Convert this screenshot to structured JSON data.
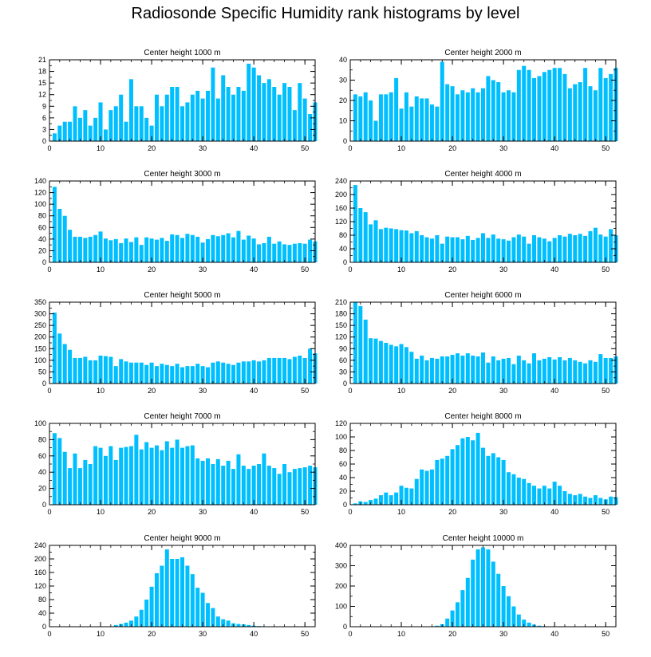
{
  "title": "Radiosonde Specific Humidity rank histograms by level",
  "colors": {
    "bar": "#00BFFF",
    "axis": "#000000"
  },
  "chart_data": [
    {
      "type": "bar",
      "title": "Center height 1000 m",
      "xlim": [
        0,
        52
      ],
      "xticks": [
        0,
        10,
        20,
        30,
        40,
        50
      ],
      "ylim": [
        0,
        21
      ],
      "yticks": [
        0,
        3,
        6,
        9,
        12,
        15,
        18,
        21
      ],
      "values": [
        2,
        4,
        5,
        5,
        9,
        6,
        8,
        4,
        6,
        10,
        3,
        8,
        9,
        12,
        5,
        16,
        9,
        9,
        6,
        4,
        12,
        9,
        12,
        14,
        14,
        9,
        10,
        12,
        13,
        11,
        13,
        19,
        11,
        17,
        14,
        12,
        14,
        13,
        20,
        19,
        17,
        15,
        16,
        14,
        12,
        15,
        14,
        8,
        15,
        11,
        7,
        10
      ]
    },
    {
      "type": "bar",
      "title": "Center height 2000 m",
      "xlim": [
        0,
        52
      ],
      "xticks": [
        0,
        10,
        20,
        30,
        40,
        50
      ],
      "ylim": [
        0,
        40
      ],
      "yticks": [
        0,
        10,
        20,
        30,
        40
      ],
      "values": [
        23,
        22,
        24,
        20,
        10,
        23,
        23,
        24,
        31,
        16,
        24,
        17,
        22,
        21,
        21,
        18,
        17,
        39,
        28,
        27,
        23,
        25,
        24,
        26,
        24,
        26,
        32,
        30,
        29,
        24,
        25,
        24,
        35,
        37,
        35,
        31,
        32,
        34,
        35,
        36,
        36,
        33,
        26,
        28,
        29,
        36,
        27,
        25,
        36,
        31,
        33,
        36
      ]
    },
    {
      "type": "bar",
      "title": "Center height 3000 m",
      "xlim": [
        0,
        52
      ],
      "xticks": [
        0,
        10,
        20,
        30,
        40,
        50
      ],
      "ylim": [
        0,
        140
      ],
      "yticks": [
        0,
        20,
        40,
        60,
        80,
        100,
        120,
        140
      ],
      "values": [
        130,
        92,
        80,
        56,
        44,
        44,
        42,
        44,
        47,
        53,
        41,
        38,
        40,
        33,
        41,
        35,
        43,
        30,
        43,
        41,
        39,
        42,
        37,
        48,
        47,
        42,
        49,
        47,
        44,
        34,
        40,
        47,
        45,
        47,
        50,
        43,
        54,
        39,
        46,
        41,
        31,
        33,
        44,
        32,
        36,
        31,
        30,
        32,
        33,
        32,
        39,
        36
      ]
    },
    {
      "type": "bar",
      "title": "Center height 4000 m",
      "xlim": [
        0,
        52
      ],
      "xticks": [
        0,
        10,
        20,
        30,
        40,
        50
      ],
      "ylim": [
        0,
        240
      ],
      "yticks": [
        0,
        40,
        80,
        120,
        160,
        200,
        240
      ],
      "values": [
        228,
        160,
        148,
        112,
        124,
        98,
        102,
        100,
        98,
        95,
        94,
        86,
        92,
        80,
        74,
        70,
        80,
        55,
        76,
        74,
        74,
        68,
        78,
        66,
        72,
        86,
        72,
        82,
        70,
        68,
        64,
        74,
        82,
        76,
        55,
        80,
        74,
        70,
        62,
        72,
        80,
        76,
        84,
        80,
        84,
        78,
        92,
        102,
        82,
        76,
        98,
        80
      ]
    },
    {
      "type": "bar",
      "title": "Center height 5000 m",
      "xlim": [
        0,
        52
      ],
      "xticks": [
        0,
        10,
        20,
        30,
        40,
        50
      ],
      "ylim": [
        0,
        350
      ],
      "yticks": [
        0,
        50,
        100,
        150,
        200,
        250,
        300,
        350
      ],
      "values": [
        305,
        215,
        170,
        145,
        110,
        110,
        115,
        100,
        100,
        120,
        118,
        115,
        75,
        105,
        95,
        90,
        90,
        90,
        80,
        90,
        75,
        85,
        80,
        75,
        85,
        70,
        75,
        75,
        85,
        75,
        70,
        90,
        95,
        90,
        85,
        80,
        90,
        95,
        95,
        100,
        95,
        100,
        110,
        110,
        110,
        110,
        105,
        115,
        120,
        110,
        150,
        130
      ]
    },
    {
      "type": "bar",
      "title": "Center height 6000 m",
      "xlim": [
        0,
        52
      ],
      "xticks": [
        0,
        10,
        20,
        30,
        40,
        50
      ],
      "ylim": [
        0,
        210
      ],
      "yticks": [
        0,
        30,
        60,
        90,
        120,
        150,
        180,
        210
      ],
      "values": [
        210,
        200,
        165,
        117,
        116,
        110,
        105,
        100,
        96,
        102,
        94,
        82,
        64,
        72,
        60,
        66,
        64,
        70,
        70,
        74,
        78,
        72,
        78,
        72,
        70,
        80,
        54,
        70,
        60,
        64,
        66,
        50,
        72,
        60,
        52,
        78,
        60,
        64,
        68,
        62,
        68,
        60,
        66,
        60,
        56,
        52,
        60,
        56,
        76,
        66,
        66,
        70
      ]
    },
    {
      "type": "bar",
      "title": "Center height 7000 m",
      "xlim": [
        0,
        52
      ],
      "xticks": [
        0,
        10,
        20,
        30,
        40,
        50
      ],
      "ylim": [
        0,
        100
      ],
      "yticks": [
        0,
        20,
        40,
        60,
        80,
        100
      ],
      "values": [
        88,
        82,
        65,
        45,
        63,
        45,
        55,
        50,
        72,
        70,
        60,
        72,
        55,
        70,
        71,
        72,
        86,
        68,
        77,
        70,
        73,
        67,
        78,
        70,
        80,
        70,
        72,
        73,
        57,
        54,
        57,
        50,
        56,
        48,
        54,
        44,
        62,
        48,
        44,
        48,
        50,
        63,
        48,
        45,
        38,
        50,
        40,
        44,
        45,
        46,
        48,
        46
      ]
    },
    {
      "type": "bar",
      "title": "Center height 8000 m",
      "xlim": [
        0,
        52
      ],
      "xticks": [
        0,
        10,
        20,
        30,
        40,
        50
      ],
      "ylim": [
        0,
        120
      ],
      "yticks": [
        0,
        20,
        40,
        60,
        80,
        100,
        120
      ],
      "values": [
        2,
        5,
        4,
        7,
        9,
        14,
        18,
        14,
        18,
        28,
        25,
        24,
        38,
        52,
        50,
        52,
        66,
        68,
        72,
        82,
        88,
        98,
        100,
        95,
        106,
        84,
        72,
        76,
        70,
        66,
        48,
        45,
        40,
        38,
        32,
        28,
        24,
        28,
        24,
        34,
        28,
        20,
        16,
        14,
        16,
        12,
        10,
        14,
        10,
        8,
        12,
        11
      ]
    },
    {
      "type": "bar",
      "title": "Center height 9000 m",
      "xlim": [
        0,
        52
      ],
      "xticks": [
        0,
        10,
        20,
        30,
        40,
        50
      ],
      "ylim": [
        0,
        240
      ],
      "yticks": [
        0,
        40,
        80,
        120,
        160,
        200,
        240
      ],
      "values": [
        0,
        0,
        0,
        0,
        0,
        0,
        0,
        0,
        0,
        0,
        0,
        0,
        5,
        8,
        12,
        18,
        30,
        50,
        80,
        118,
        158,
        180,
        228,
        200,
        200,
        205,
        180,
        155,
        115,
        100,
        70,
        55,
        30,
        22,
        18,
        10,
        8,
        7,
        5,
        3,
        2,
        1,
        1,
        1,
        0,
        0,
        0,
        0,
        0,
        0,
        0,
        0
      ]
    },
    {
      "type": "bar",
      "title": "Center height 10000 m",
      "xlim": [
        0,
        52
      ],
      "xticks": [
        0,
        10,
        20,
        30,
        40,
        50
      ],
      "ylim": [
        0,
        400
      ],
      "yticks": [
        0,
        100,
        200,
        300,
        400
      ],
      "values": [
        0,
        0,
        0,
        0,
        0,
        0,
        0,
        0,
        0,
        0,
        0,
        0,
        0,
        0,
        0,
        0,
        5,
        12,
        40,
        80,
        120,
        180,
        240,
        330,
        380,
        390,
        380,
        320,
        260,
        200,
        150,
        100,
        60,
        35,
        20,
        10,
        5,
        3,
        2,
        1,
        1,
        1,
        1,
        0,
        0,
        0,
        0,
        0,
        0,
        0,
        0,
        0
      ]
    }
  ]
}
